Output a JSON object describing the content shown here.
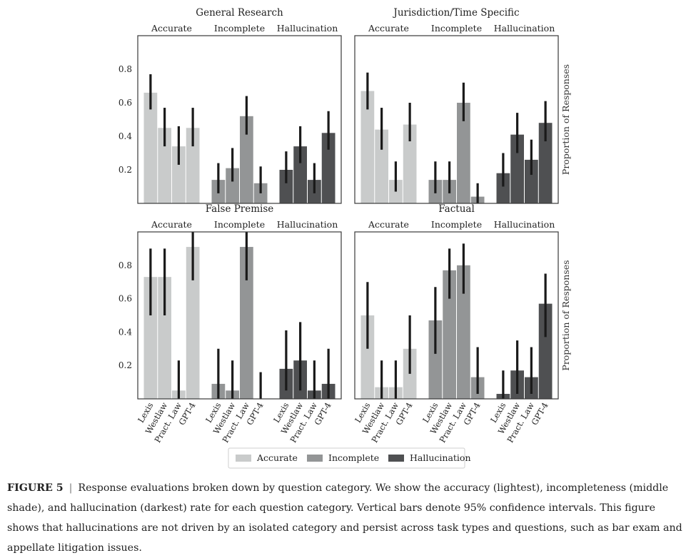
{
  "chart_data": [
    {
      "type": "bar",
      "title": "General Research",
      "groups": [
        "Accurate",
        "Incomplete",
        "Hallucination"
      ],
      "categories": [
        "Lexis",
        "Westlaw",
        "Pract. Law",
        "GPT-4"
      ],
      "series": [
        {
          "name": "Accurate",
          "values": [
            0.66,
            0.45,
            0.34,
            0.45
          ],
          "ci_low": [
            0.56,
            0.34,
            0.23,
            0.34
          ],
          "ci_high": [
            0.77,
            0.57,
            0.46,
            0.57
          ]
        },
        {
          "name": "Incomplete",
          "values": [
            0.14,
            0.21,
            0.52,
            0.12
          ],
          "ci_low": [
            0.06,
            0.13,
            0.41,
            0.06
          ],
          "ci_high": [
            0.24,
            0.33,
            0.64,
            0.22
          ]
        },
        {
          "name": "Hallucination",
          "values": [
            0.2,
            0.34,
            0.14,
            0.42
          ],
          "ci_low": [
            0.12,
            0.24,
            0.06,
            0.32
          ],
          "ci_high": [
            0.31,
            0.46,
            0.24,
            0.55
          ]
        }
      ],
      "ylabel": "",
      "ylim": [
        0,
        1.0
      ],
      "yticks": [
        0.2,
        0.4,
        0.6,
        0.8
      ]
    },
    {
      "type": "bar",
      "title": "Jurisdiction/Time Specific",
      "groups": [
        "Accurate",
        "Incomplete",
        "Hallucination"
      ],
      "categories": [
        "Lexis",
        "Westlaw",
        "Pract. Law",
        "GPT-4"
      ],
      "series": [
        {
          "name": "Accurate",
          "values": [
            0.67,
            0.44,
            0.14,
            0.47
          ],
          "ci_low": [
            0.56,
            0.32,
            0.07,
            0.37
          ],
          "ci_high": [
            0.78,
            0.57,
            0.25,
            0.6
          ]
        },
        {
          "name": "Incomplete",
          "values": [
            0.14,
            0.14,
            0.6,
            0.04
          ],
          "ci_low": [
            0.06,
            0.06,
            0.49,
            0.0
          ],
          "ci_high": [
            0.25,
            0.25,
            0.72,
            0.12
          ]
        },
        {
          "name": "Hallucination",
          "values": [
            0.18,
            0.41,
            0.26,
            0.48
          ],
          "ci_low": [
            0.1,
            0.3,
            0.17,
            0.37
          ],
          "ci_high": [
            0.3,
            0.54,
            0.38,
            0.61
          ]
        }
      ],
      "ylabel": "Proportion of Responses",
      "ylim": [
        0,
        1.0
      ],
      "yticks": [
        0.2,
        0.4,
        0.6,
        0.8
      ]
    },
    {
      "type": "bar",
      "title": "False Premise",
      "groups": [
        "Accurate",
        "Incomplete",
        "Hallucination"
      ],
      "categories": [
        "Lexis",
        "Westlaw",
        "Pract. Law",
        "GPT-4"
      ],
      "series": [
        {
          "name": "Accurate",
          "values": [
            0.73,
            0.73,
            0.05,
            0.91
          ],
          "ci_low": [
            0.5,
            0.5,
            0.0,
            0.71
          ],
          "ci_high": [
            0.9,
            0.9,
            0.23,
            1.0
          ]
        },
        {
          "name": "Incomplete",
          "values": [
            0.09,
            0.05,
            0.91,
            0.0
          ],
          "ci_low": [
            0.0,
            0.0,
            0.71,
            0.0
          ],
          "ci_high": [
            0.3,
            0.23,
            1.0,
            0.16
          ]
        },
        {
          "name": "Hallucination",
          "values": [
            0.18,
            0.23,
            0.05,
            0.09
          ],
          "ci_low": [
            0.05,
            0.05,
            0.0,
            0.0
          ],
          "ci_high": [
            0.41,
            0.46,
            0.23,
            0.3
          ]
        }
      ],
      "ylabel": "",
      "ylim": [
        0,
        1.0
      ],
      "yticks": [
        0.2,
        0.4,
        0.6,
        0.8
      ]
    },
    {
      "type": "bar",
      "title": "Factual",
      "groups": [
        "Accurate",
        "Incomplete",
        "Hallucination"
      ],
      "categories": [
        "Lexis",
        "Westlaw",
        "Pract. Law",
        "GPT-4"
      ],
      "series": [
        {
          "name": "Accurate",
          "values": [
            0.5,
            0.07,
            0.07,
            0.3
          ],
          "ci_low": [
            0.3,
            0.0,
            0.0,
            0.15
          ],
          "ci_high": [
            0.7,
            0.23,
            0.23,
            0.5
          ]
        },
        {
          "name": "Incomplete",
          "values": [
            0.47,
            0.77,
            0.8,
            0.13
          ],
          "ci_low": [
            0.27,
            0.6,
            0.63,
            0.03
          ],
          "ci_high": [
            0.67,
            0.9,
            0.93,
            0.31
          ]
        },
        {
          "name": "Hallucination",
          "values": [
            0.03,
            0.17,
            0.13,
            0.57
          ],
          "ci_low": [
            0.0,
            0.03,
            0.03,
            0.37
          ],
          "ci_high": [
            0.17,
            0.35,
            0.31,
            0.75
          ]
        }
      ],
      "ylabel": "Proportion of Responses",
      "ylim": [
        0,
        1.0
      ],
      "yticks": [
        0.2,
        0.4,
        0.6,
        0.8
      ]
    }
  ],
  "legend": {
    "position": "bottom-center",
    "entries": [
      {
        "name": "Accurate",
        "color": "#c9cbcb"
      },
      {
        "name": "Incomplete",
        "color": "#939596"
      },
      {
        "name": "Hallucination",
        "color": "#4f5052"
      }
    ]
  },
  "colors": {
    "accurate": "#c9cbcb",
    "incomplete": "#939596",
    "hallucination": "#4f5052",
    "error_bar": "#1a1a1a",
    "axis": "#3a3a3a"
  },
  "caption": {
    "label": "FIGURE 5",
    "separator": "|",
    "text": "Response evaluations broken down by question category. We show the accuracy (lightest), incompleteness (middle shade), and hallucination (darkest) rate for each question category. Vertical bars denote 95% confidence intervals. This figure shows that hallucinations are not driven by an isolated category and persist across task types and questions, such as bar exam and appellate litigation issues."
  }
}
